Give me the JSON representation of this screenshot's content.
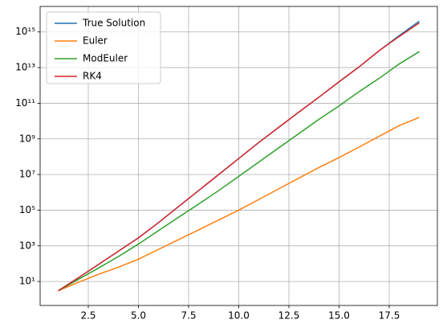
{
  "chart_data": {
    "type": "line",
    "log_y": true,
    "grid": true,
    "legend": "upper left",
    "x": [
      1,
      2,
      3,
      4,
      5,
      6,
      7,
      8,
      9,
      10,
      11,
      12,
      13,
      14,
      15,
      16,
      17,
      18,
      19
    ],
    "series": [
      {
        "name": "True Solution",
        "color": "#1f77b4",
        "values": [
          3,
          16,
          89,
          500,
          2800,
          20000.0,
          160000.0,
          1260000.0,
          10000000.0,
          79000000.0,
          630000000.0,
          4500000000.0,
          32000000000.0,
          220000000000.0,
          1600000000000.0,
          11000000000000.0,
          89000000000000.0,
          630000000000000.0,
          4000000000000000.0
        ]
      },
      {
        "name": "Euler",
        "color": "#ff7f0e",
        "values": [
          3,
          8.9,
          25,
          63,
          178,
          630,
          2240,
          7900,
          28000.0,
          100000.0,
          400000.0,
          1600000.0,
          6300000.0,
          25000000.0,
          89000000.0,
          350000000.0,
          1400000000.0,
          5600000000.0,
          16000000000.0
        ]
      },
      {
        "name": "ModEuler",
        "color": "#2ca02c",
        "values": [
          3,
          13,
          56,
          250,
          1260,
          7100,
          40000.0,
          220000.0,
          1260000.0,
          7900000.0,
          50000000.0,
          320000000.0,
          2000000000.0,
          12600000000.0,
          71000000000.0,
          450000000000.0,
          2500000000000.0,
          16000000000000.0,
          79000000000000.0
        ]
      },
      {
        "name": "RK4",
        "color": "#d62728",
        "values": [
          3,
          16,
          89,
          500,
          2800,
          20000.0,
          160000.0,
          1260000.0,
          10000000.0,
          79000000.0,
          630000000.0,
          4500000000.0,
          32000000000.0,
          220000000000.0,
          1600000000000.0,
          11000000000000.0,
          89000000000000.0,
          560000000000000.0,
          3200000000000000.0
        ]
      }
    ],
    "xlim": [
      0.1,
      19.9
    ],
    "xticks": [
      2.5,
      {
        "value": 5,
        "label": "5.0"
      },
      7.5,
      {
        "value": 10,
        "label": "10.0"
      },
      12.5,
      {
        "value": 15,
        "label": "15.0"
      },
      17.5
    ],
    "ylim": [
      0.45,
      2.7e+16
    ],
    "yticks": [
      {
        "value": 10,
        "label": "10¹"
      },
      {
        "value": 1000,
        "label": "10³"
      },
      {
        "value": 100000,
        "label": "10⁵"
      },
      {
        "value": 10000000,
        "label": "10⁷"
      },
      {
        "value": 1000000000,
        "label": "10⁹"
      },
      {
        "value": 100000000000,
        "label": "10¹¹"
      },
      {
        "value": 10000000000000,
        "label": "10¹³"
      },
      {
        "value": 1000000000000000,
        "label": "10¹⁵"
      }
    ]
  }
}
